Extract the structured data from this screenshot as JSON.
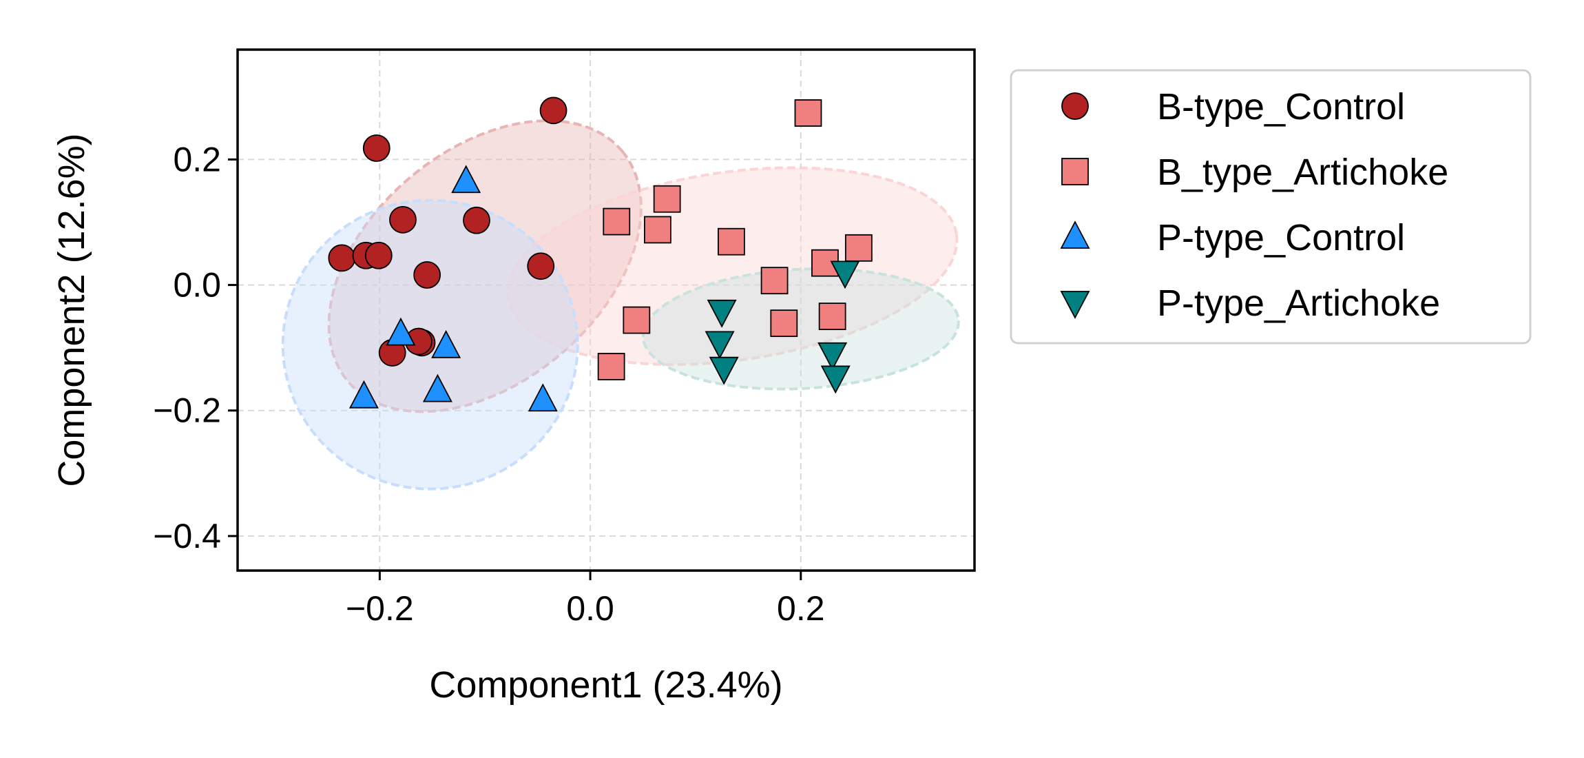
{
  "chart_data": {
    "type": "scatter",
    "title": "",
    "xlabel": "Component1 (23.4%)",
    "ylabel": "Component2 (12.6%)",
    "xlim": [
      -0.335,
      0.365
    ],
    "ylim": [
      -0.455,
      0.375
    ],
    "xticks": [
      -0.2,
      0.0,
      0.2
    ],
    "yticks": [
      -0.4,
      -0.2,
      0.0,
      0.2
    ],
    "xtick_labels": [
      "−0.2",
      "0.0",
      "0.2"
    ],
    "ytick_labels": [
      "−0.4",
      "−0.2",
      "0.0",
      "0.2"
    ],
    "grid": true,
    "legend_position": "outside-right-top",
    "series": [
      {
        "name": "B-type_Control",
        "marker": "circle",
        "color": "#b22222",
        "ellipse": {
          "cx": -0.1,
          "cy": 0.03,
          "rx": 0.17,
          "ry": 0.185,
          "angle_deg": 40,
          "color": "#e8b4b4"
        },
        "points": [
          [
            -0.035,
            0.278
          ],
          [
            -0.203,
            0.218
          ],
          [
            -0.178,
            0.104
          ],
          [
            -0.108,
            0.103
          ],
          [
            -0.236,
            0.043
          ],
          [
            -0.213,
            0.047
          ],
          [
            -0.201,
            0.047
          ],
          [
            -0.155,
            0.016
          ],
          [
            -0.047,
            0.03
          ],
          [
            -0.16,
            -0.092
          ],
          [
            -0.163,
            -0.09
          ],
          [
            -0.188,
            -0.108
          ]
        ]
      },
      {
        "name": "B_type_Artichoke",
        "marker": "square",
        "color": "#f08080",
        "ellipse": {
          "cx": 0.135,
          "cy": 0.03,
          "rx": 0.215,
          "ry": 0.15,
          "angle_deg": 8,
          "color": "#fbd5d5"
        },
        "points": [
          [
            0.207,
            0.274
          ],
          [
            0.073,
            0.137
          ],
          [
            0.025,
            0.101
          ],
          [
            0.064,
            0.088
          ],
          [
            0.134,
            0.069
          ],
          [
            0.255,
            0.059
          ],
          [
            0.223,
            0.035
          ],
          [
            0.175,
            0.007
          ],
          [
            0.044,
            -0.056
          ],
          [
            0.184,
            -0.061
          ],
          [
            0.23,
            -0.05
          ],
          [
            0.02,
            -0.13
          ]
        ]
      },
      {
        "name": "P-type_Control",
        "marker": "triangle-up",
        "color": "#1e90ff",
        "ellipse": {
          "cx": -0.152,
          "cy": -0.095,
          "rx": 0.14,
          "ry": 0.23,
          "angle_deg": 0,
          "color": "#c6defb"
        },
        "points": [
          [
            -0.118,
            0.165
          ],
          [
            -0.18,
            -0.078
          ],
          [
            -0.137,
            -0.098
          ],
          [
            -0.145,
            -0.168
          ],
          [
            -0.215,
            -0.178
          ],
          [
            -0.045,
            -0.183
          ]
        ]
      },
      {
        "name": "P-type_Artichoke",
        "marker": "triangle-down",
        "color": "#008080",
        "ellipse": {
          "cx": 0.2,
          "cy": -0.07,
          "rx": 0.15,
          "ry": 0.095,
          "angle_deg": 3,
          "color": "#c8e3df"
        },
        "points": [
          [
            0.242,
            0.02
          ],
          [
            0.125,
            -0.042
          ],
          [
            0.123,
            -0.092
          ],
          [
            0.23,
            -0.11
          ],
          [
            0.127,
            -0.133
          ],
          [
            0.233,
            -0.147
          ]
        ]
      }
    ]
  }
}
